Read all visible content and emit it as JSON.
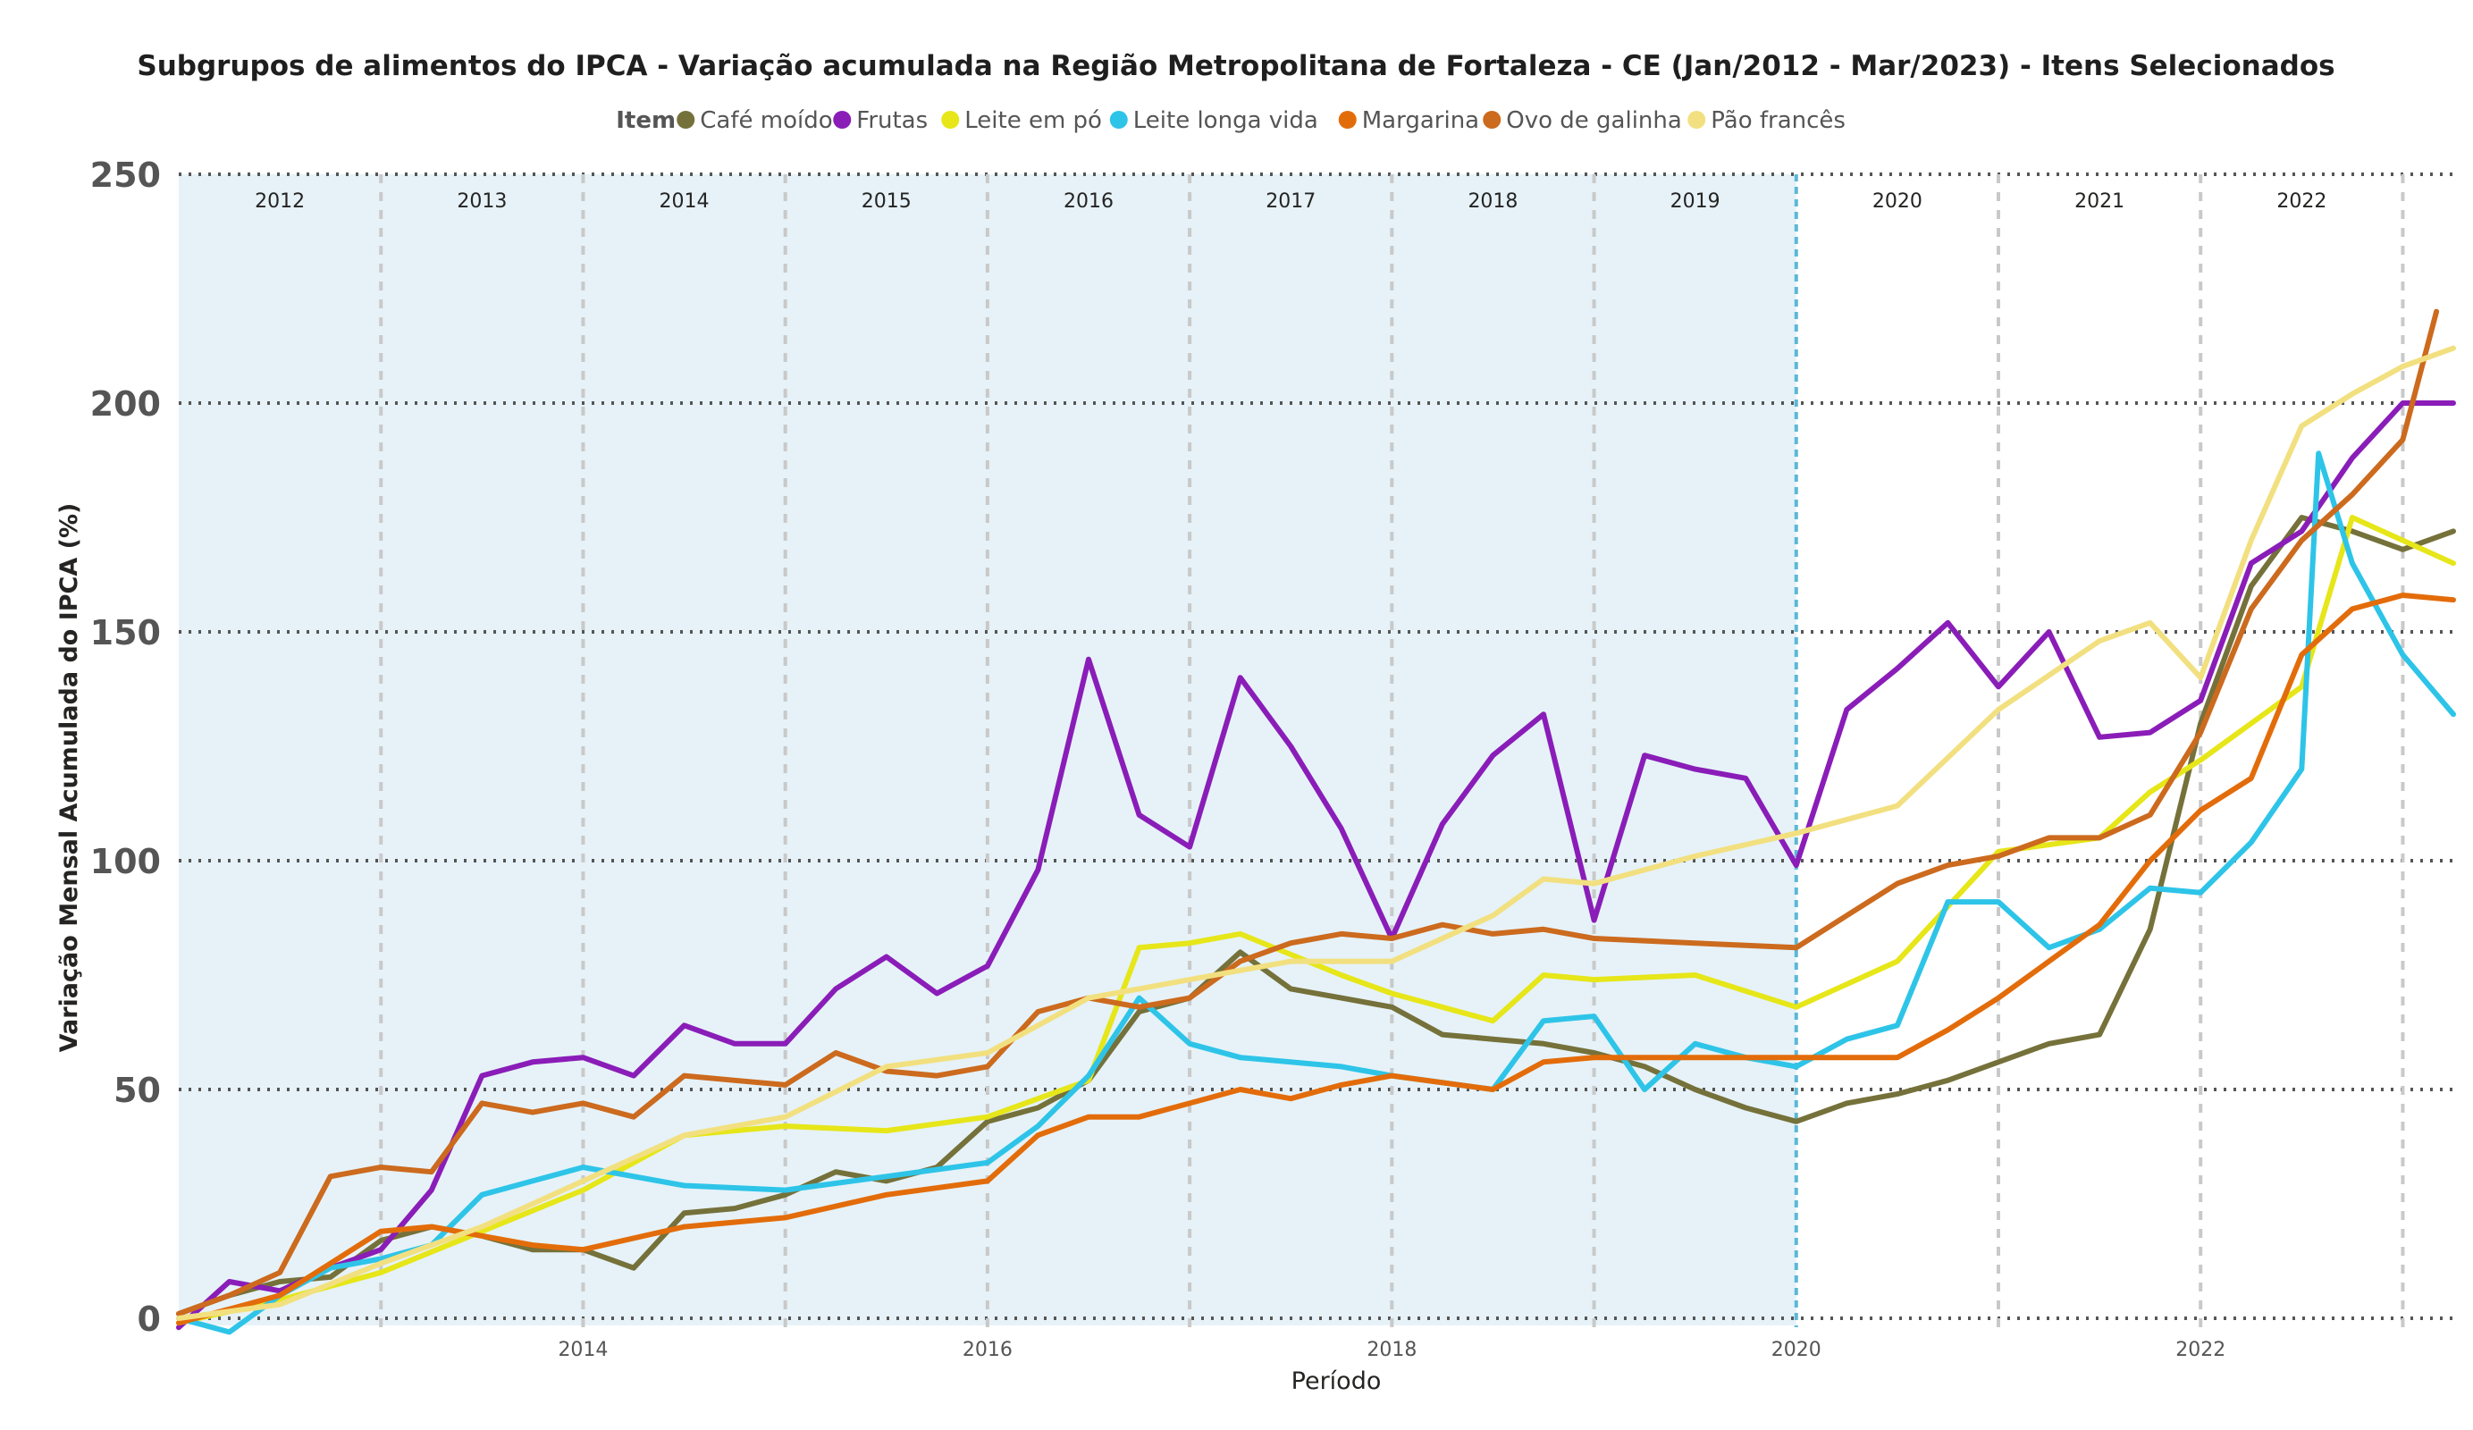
{
  "chart_data": {
    "type": "line",
    "title": "Subgrupos de alimentos do IPCA - Variação acumulada na Região Metropolitana de Fortaleza - CE (Jan/2012 - Mar/2023) - Itens Selecionados",
    "legend_title": "Item",
    "legend_position": "top-center",
    "xlabel": "Período",
    "ylabel": "Variação Mensal Acumulada do IPCA (%)",
    "xlim": [
      "2012-01",
      "2023-04"
    ],
    "ylim": [
      0,
      250
    ],
    "y_ticks": [
      "0",
      "50",
      "100",
      "150",
      "200",
      "250"
    ],
    "x_ticks": [
      "2014",
      "2016",
      "2018",
      "2020",
      "2022"
    ],
    "year_band_labels": [
      "2012",
      "2013",
      "2014",
      "2015",
      "2016",
      "2017",
      "2018",
      "2019",
      "2020",
      "2021",
      "2022"
    ],
    "highlight": {
      "label": "2019",
      "from": "2012-01",
      "to": "2020-01",
      "color": "#e6f2f8"
    },
    "grid": true,
    "series": [
      {
        "name": "Café moído",
        "color": "#75713a",
        "points": [
          [
            "2012-01",
            1
          ],
          [
            "2012-04",
            5
          ],
          [
            "2012-07",
            8
          ],
          [
            "2012-10",
            9
          ],
          [
            "2013-01",
            17
          ],
          [
            "2013-04",
            20
          ],
          [
            "2013-07",
            18
          ],
          [
            "2013-10",
            15
          ],
          [
            "2014-01",
            15
          ],
          [
            "2014-04",
            11
          ],
          [
            "2014-07",
            23
          ],
          [
            "2014-10",
            24
          ],
          [
            "2015-01",
            27
          ],
          [
            "2015-04",
            32
          ],
          [
            "2015-07",
            30
          ],
          [
            "2015-10",
            33
          ],
          [
            "2016-01",
            43
          ],
          [
            "2016-04",
            46
          ],
          [
            "2016-07",
            52
          ],
          [
            "2016-10",
            67
          ],
          [
            "2017-01",
            70
          ],
          [
            "2017-04",
            80
          ],
          [
            "2017-07",
            72
          ],
          [
            "2017-10",
            70
          ],
          [
            "2018-01",
            68
          ],
          [
            "2018-04",
            62
          ],
          [
            "2018-07",
            61
          ],
          [
            "2018-10",
            60
          ],
          [
            "2019-01",
            58
          ],
          [
            "2019-04",
            55
          ],
          [
            "2019-07",
            50
          ],
          [
            "2019-10",
            46
          ],
          [
            "2020-01",
            43
          ],
          [
            "2020-04",
            47
          ],
          [
            "2020-07",
            49
          ],
          [
            "2020-10",
            52
          ],
          [
            "2021-01",
            56
          ],
          [
            "2021-04",
            60
          ],
          [
            "2021-07",
            62
          ],
          [
            "2021-10",
            85
          ],
          [
            "2022-01",
            130
          ],
          [
            "2022-04",
            160
          ],
          [
            "2022-07",
            175
          ],
          [
            "2022-10",
            172
          ],
          [
            "2023-01",
            168
          ],
          [
            "2023-04",
            172
          ]
        ]
      },
      {
        "name": "Frutas",
        "color": "#8a1db8",
        "points": [
          [
            "2012-01",
            -2
          ],
          [
            "2012-04",
            8
          ],
          [
            "2012-07",
            6
          ],
          [
            "2012-10",
            11
          ],
          [
            "2013-01",
            15
          ],
          [
            "2013-04",
            28
          ],
          [
            "2013-07",
            53
          ],
          [
            "2013-10",
            56
          ],
          [
            "2014-01",
            57
          ],
          [
            "2014-04",
            53
          ],
          [
            "2014-07",
            64
          ],
          [
            "2014-10",
            60
          ],
          [
            "2015-01",
            60
          ],
          [
            "2015-04",
            72
          ],
          [
            "2015-07",
            79
          ],
          [
            "2015-10",
            71
          ],
          [
            "2016-01",
            77
          ],
          [
            "2016-04",
            98
          ],
          [
            "2016-07",
            144
          ],
          [
            "2016-10",
            110
          ],
          [
            "2017-01",
            103
          ],
          [
            "2017-04",
            140
          ],
          [
            "2017-07",
            125
          ],
          [
            "2017-10",
            107
          ],
          [
            "2018-01",
            83
          ],
          [
            "2018-04",
            108
          ],
          [
            "2018-07",
            123
          ],
          [
            "2018-10",
            132
          ],
          [
            "2019-01",
            87
          ],
          [
            "2019-04",
            123
          ],
          [
            "2019-07",
            120
          ],
          [
            "2019-10",
            118
          ],
          [
            "2020-01",
            99
          ],
          [
            "2020-04",
            133
          ],
          [
            "2020-07",
            142
          ],
          [
            "2020-10",
            152
          ],
          [
            "2021-01",
            138
          ],
          [
            "2021-04",
            150
          ],
          [
            "2021-07",
            127
          ],
          [
            "2021-10",
            128
          ],
          [
            "2022-01",
            135
          ],
          [
            "2022-04",
            165
          ],
          [
            "2022-07",
            172
          ],
          [
            "2022-10",
            188
          ],
          [
            "2023-01",
            200
          ],
          [
            "2023-04",
            200
          ]
        ]
      },
      {
        "name": "Leite em pó",
        "color": "#e6e619",
        "points": [
          [
            "2012-01",
            -1
          ],
          [
            "2012-07",
            4
          ],
          [
            "2013-01",
            10
          ],
          [
            "2013-07",
            19
          ],
          [
            "2014-01",
            28
          ],
          [
            "2014-07",
            40
          ],
          [
            "2015-01",
            42
          ],
          [
            "2015-07",
            41
          ],
          [
            "2016-01",
            44
          ],
          [
            "2016-07",
            52
          ],
          [
            "2016-10",
            81
          ],
          [
            "2017-01",
            82
          ],
          [
            "2017-04",
            84
          ],
          [
            "2017-10",
            75
          ],
          [
            "2018-01",
            71
          ],
          [
            "2018-07",
            65
          ],
          [
            "2018-10",
            75
          ],
          [
            "2019-01",
            74
          ],
          [
            "2019-07",
            75
          ],
          [
            "2020-01",
            68
          ],
          [
            "2020-07",
            78
          ],
          [
            "2021-01",
            102
          ],
          [
            "2021-07",
            105
          ],
          [
            "2021-10",
            115
          ],
          [
            "2022-01",
            122
          ],
          [
            "2022-07",
            138
          ],
          [
            "2022-10",
            175
          ],
          [
            "2023-01",
            170
          ],
          [
            "2023-04",
            165
          ]
        ]
      },
      {
        "name": "Leite longa vida",
        "color": "#2ec4e8",
        "points": [
          [
            "2012-01",
            0
          ],
          [
            "2012-04",
            -3
          ],
          [
            "2012-07",
            5
          ],
          [
            "2012-10",
            11
          ],
          [
            "2013-01",
            13
          ],
          [
            "2013-04",
            16
          ],
          [
            "2013-07",
            27
          ],
          [
            "2013-10",
            30
          ],
          [
            "2014-01",
            33
          ],
          [
            "2014-07",
            29
          ],
          [
            "2015-01",
            28
          ],
          [
            "2015-07",
            31
          ],
          [
            "2016-01",
            34
          ],
          [
            "2016-04",
            42
          ],
          [
            "2016-07",
            53
          ],
          [
            "2016-10",
            70
          ],
          [
            "2017-01",
            60
          ],
          [
            "2017-04",
            57
          ],
          [
            "2017-10",
            55
          ],
          [
            "2018-01",
            53
          ],
          [
            "2018-07",
            50
          ],
          [
            "2018-10",
            65
          ],
          [
            "2019-01",
            66
          ],
          [
            "2019-04",
            50
          ],
          [
            "2019-07",
            60
          ],
          [
            "2019-10",
            57
          ],
          [
            "2020-01",
            55
          ],
          [
            "2020-04",
            61
          ],
          [
            "2020-07",
            64
          ],
          [
            "2020-10",
            91
          ],
          [
            "2021-01",
            91
          ],
          [
            "2021-04",
            81
          ],
          [
            "2021-07",
            85
          ],
          [
            "2021-10",
            94
          ],
          [
            "2022-01",
            93
          ],
          [
            "2022-04",
            104
          ],
          [
            "2022-07",
            120
          ],
          [
            "2022-08",
            189
          ],
          [
            "2022-10",
            165
          ],
          [
            "2023-01",
            145
          ],
          [
            "2023-04",
            132
          ]
        ]
      },
      {
        "name": "Margarina",
        "color": "#e36c0a",
        "points": [
          [
            "2012-01",
            -1
          ],
          [
            "2012-07",
            5
          ],
          [
            "2012-10",
            12
          ],
          [
            "2013-01",
            19
          ],
          [
            "2013-04",
            20
          ],
          [
            "2013-07",
            18
          ],
          [
            "2013-10",
            16
          ],
          [
            "2014-01",
            15
          ],
          [
            "2014-07",
            20
          ],
          [
            "2015-01",
            22
          ],
          [
            "2015-07",
            27
          ],
          [
            "2016-01",
            30
          ],
          [
            "2016-04",
            40
          ],
          [
            "2016-07",
            44
          ],
          [
            "2016-10",
            44
          ],
          [
            "2017-01",
            47
          ],
          [
            "2017-04",
            50
          ],
          [
            "2017-07",
            48
          ],
          [
            "2017-10",
            51
          ],
          [
            "2018-01",
            53
          ],
          [
            "2018-07",
            50
          ],
          [
            "2018-10",
            56
          ],
          [
            "2019-01",
            57
          ],
          [
            "2019-07",
            57
          ],
          [
            "2020-01",
            57
          ],
          [
            "2020-07",
            57
          ],
          [
            "2020-10",
            63
          ],
          [
            "2021-01",
            70
          ],
          [
            "2021-04",
            78
          ],
          [
            "2021-07",
            86
          ],
          [
            "2021-10",
            100
          ],
          [
            "2022-01",
            111
          ],
          [
            "2022-04",
            118
          ],
          [
            "2022-07",
            145
          ],
          [
            "2022-10",
            155
          ],
          [
            "2023-01",
            158
          ],
          [
            "2023-04",
            157
          ]
        ]
      },
      {
        "name": "Ovo de galinha",
        "color": "#cc6a1e",
        "points": [
          [
            "2012-01",
            1
          ],
          [
            "2012-04",
            5
          ],
          [
            "2012-07",
            10
          ],
          [
            "2012-10",
            31
          ],
          [
            "2013-01",
            33
          ],
          [
            "2013-04",
            32
          ],
          [
            "2013-07",
            47
          ],
          [
            "2013-10",
            45
          ],
          [
            "2014-01",
            47
          ],
          [
            "2014-04",
            44
          ],
          [
            "2014-07",
            53
          ],
          [
            "2014-10",
            52
          ],
          [
            "2015-01",
            51
          ],
          [
            "2015-04",
            58
          ],
          [
            "2015-07",
            54
          ],
          [
            "2015-10",
            53
          ],
          [
            "2016-01",
            55
          ],
          [
            "2016-04",
            67
          ],
          [
            "2016-07",
            70
          ],
          [
            "2016-10",
            68
          ],
          [
            "2017-01",
            70
          ],
          [
            "2017-04",
            78
          ],
          [
            "2017-07",
            82
          ],
          [
            "2017-10",
            84
          ],
          [
            "2018-01",
            83
          ],
          [
            "2018-04",
            86
          ],
          [
            "2018-07",
            84
          ],
          [
            "2018-10",
            85
          ],
          [
            "2019-01",
            83
          ],
          [
            "2019-07",
            82
          ],
          [
            "2020-01",
            81
          ],
          [
            "2020-04",
            88
          ],
          [
            "2020-07",
            95
          ],
          [
            "2020-10",
            99
          ],
          [
            "2021-01",
            101
          ],
          [
            "2021-04",
            105
          ],
          [
            "2021-07",
            105
          ],
          [
            "2021-10",
            110
          ],
          [
            "2022-01",
            128
          ],
          [
            "2022-04",
            155
          ],
          [
            "2022-07",
            170
          ],
          [
            "2022-10",
            180
          ],
          [
            "2023-01",
            192
          ],
          [
            "2023-03",
            220
          ]
        ]
      },
      {
        "name": "Pão francês",
        "color": "#f2e080",
        "points": [
          [
            "2012-01",
            0
          ],
          [
            "2012-07",
            3
          ],
          [
            "2013-01",
            12
          ],
          [
            "2013-07",
            20
          ],
          [
            "2014-01",
            30
          ],
          [
            "2014-07",
            40
          ],
          [
            "2015-01",
            44
          ],
          [
            "2015-07",
            55
          ],
          [
            "2016-01",
            58
          ],
          [
            "2016-07",
            70
          ],
          [
            "2016-10",
            72
          ],
          [
            "2017-01",
            74
          ],
          [
            "2017-07",
            78
          ],
          [
            "2018-01",
            78
          ],
          [
            "2018-07",
            88
          ],
          [
            "2018-10",
            96
          ],
          [
            "2019-01",
            95
          ],
          [
            "2019-07",
            101
          ],
          [
            "2020-01",
            106
          ],
          [
            "2020-07",
            112
          ],
          [
            "2021-01",
            133
          ],
          [
            "2021-07",
            148
          ],
          [
            "2021-10",
            152
          ],
          [
            "2022-01",
            140
          ],
          [
            "2022-04",
            170
          ],
          [
            "2022-07",
            195
          ],
          [
            "2022-10",
            202
          ],
          [
            "2023-01",
            208
          ],
          [
            "2023-04",
            212
          ]
        ]
      }
    ]
  }
}
